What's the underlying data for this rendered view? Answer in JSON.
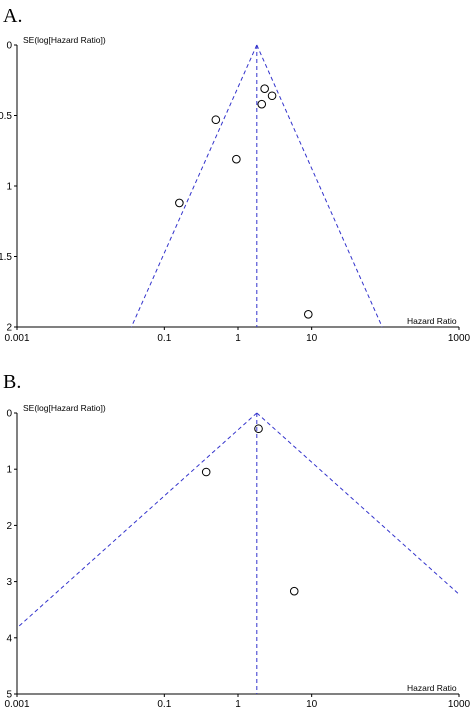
{
  "chart_data": [
    {
      "panel": "A.",
      "type": "scatter",
      "xlabel": "Hazard Ratio",
      "ylabel": "SE(log[Hazard Ratio])",
      "x_scale": "log",
      "xlim": [
        0.001,
        1000
      ],
      "x_ticks": [
        0.001,
        0.1,
        1,
        10,
        1000
      ],
      "x_tick_labels": [
        "0.001",
        "0.1",
        "1",
        "10",
        "1000"
      ],
      "ylim": [
        0,
        2
      ],
      "y_reversed": true,
      "y_ticks": [
        0,
        0.5,
        1,
        1.5,
        2
      ],
      "y_tick_labels": [
        "0",
        "0.5",
        "1",
        "1.5",
        "2"
      ],
      "pooled_hr": 1.8,
      "points": [
        {
          "x": 2.3,
          "y": 0.31
        },
        {
          "x": 2.9,
          "y": 0.36
        },
        {
          "x": 2.1,
          "y": 0.42
        },
        {
          "x": 0.5,
          "y": 0.53
        },
        {
          "x": 0.95,
          "y": 0.81
        },
        {
          "x": 0.16,
          "y": 1.12
        },
        {
          "x": 9.0,
          "y": 1.91
        }
      ]
    },
    {
      "panel": "B.",
      "type": "scatter",
      "xlabel": "Hazard Ratio",
      "ylabel": "SE(log[Hazard Ratio])",
      "x_scale": "log",
      "xlim": [
        0.001,
        1000
      ],
      "x_ticks": [
        0.001,
        0.1,
        1,
        10,
        1000
      ],
      "x_tick_labels": [
        "0.001",
        "0.1",
        "1",
        "10",
        "1000"
      ],
      "ylim": [
        0,
        5
      ],
      "y_reversed": true,
      "y_ticks": [
        0,
        1,
        2,
        3,
        4,
        5
      ],
      "y_tick_labels": [
        "0",
        "1",
        "2",
        "3",
        "4",
        "5"
      ],
      "pooled_hr": 1.8,
      "points": [
        {
          "x": 1.9,
          "y": 0.28
        },
        {
          "x": 0.37,
          "y": 1.05
        },
        {
          "x": 5.8,
          "y": 3.17
        }
      ]
    }
  ]
}
